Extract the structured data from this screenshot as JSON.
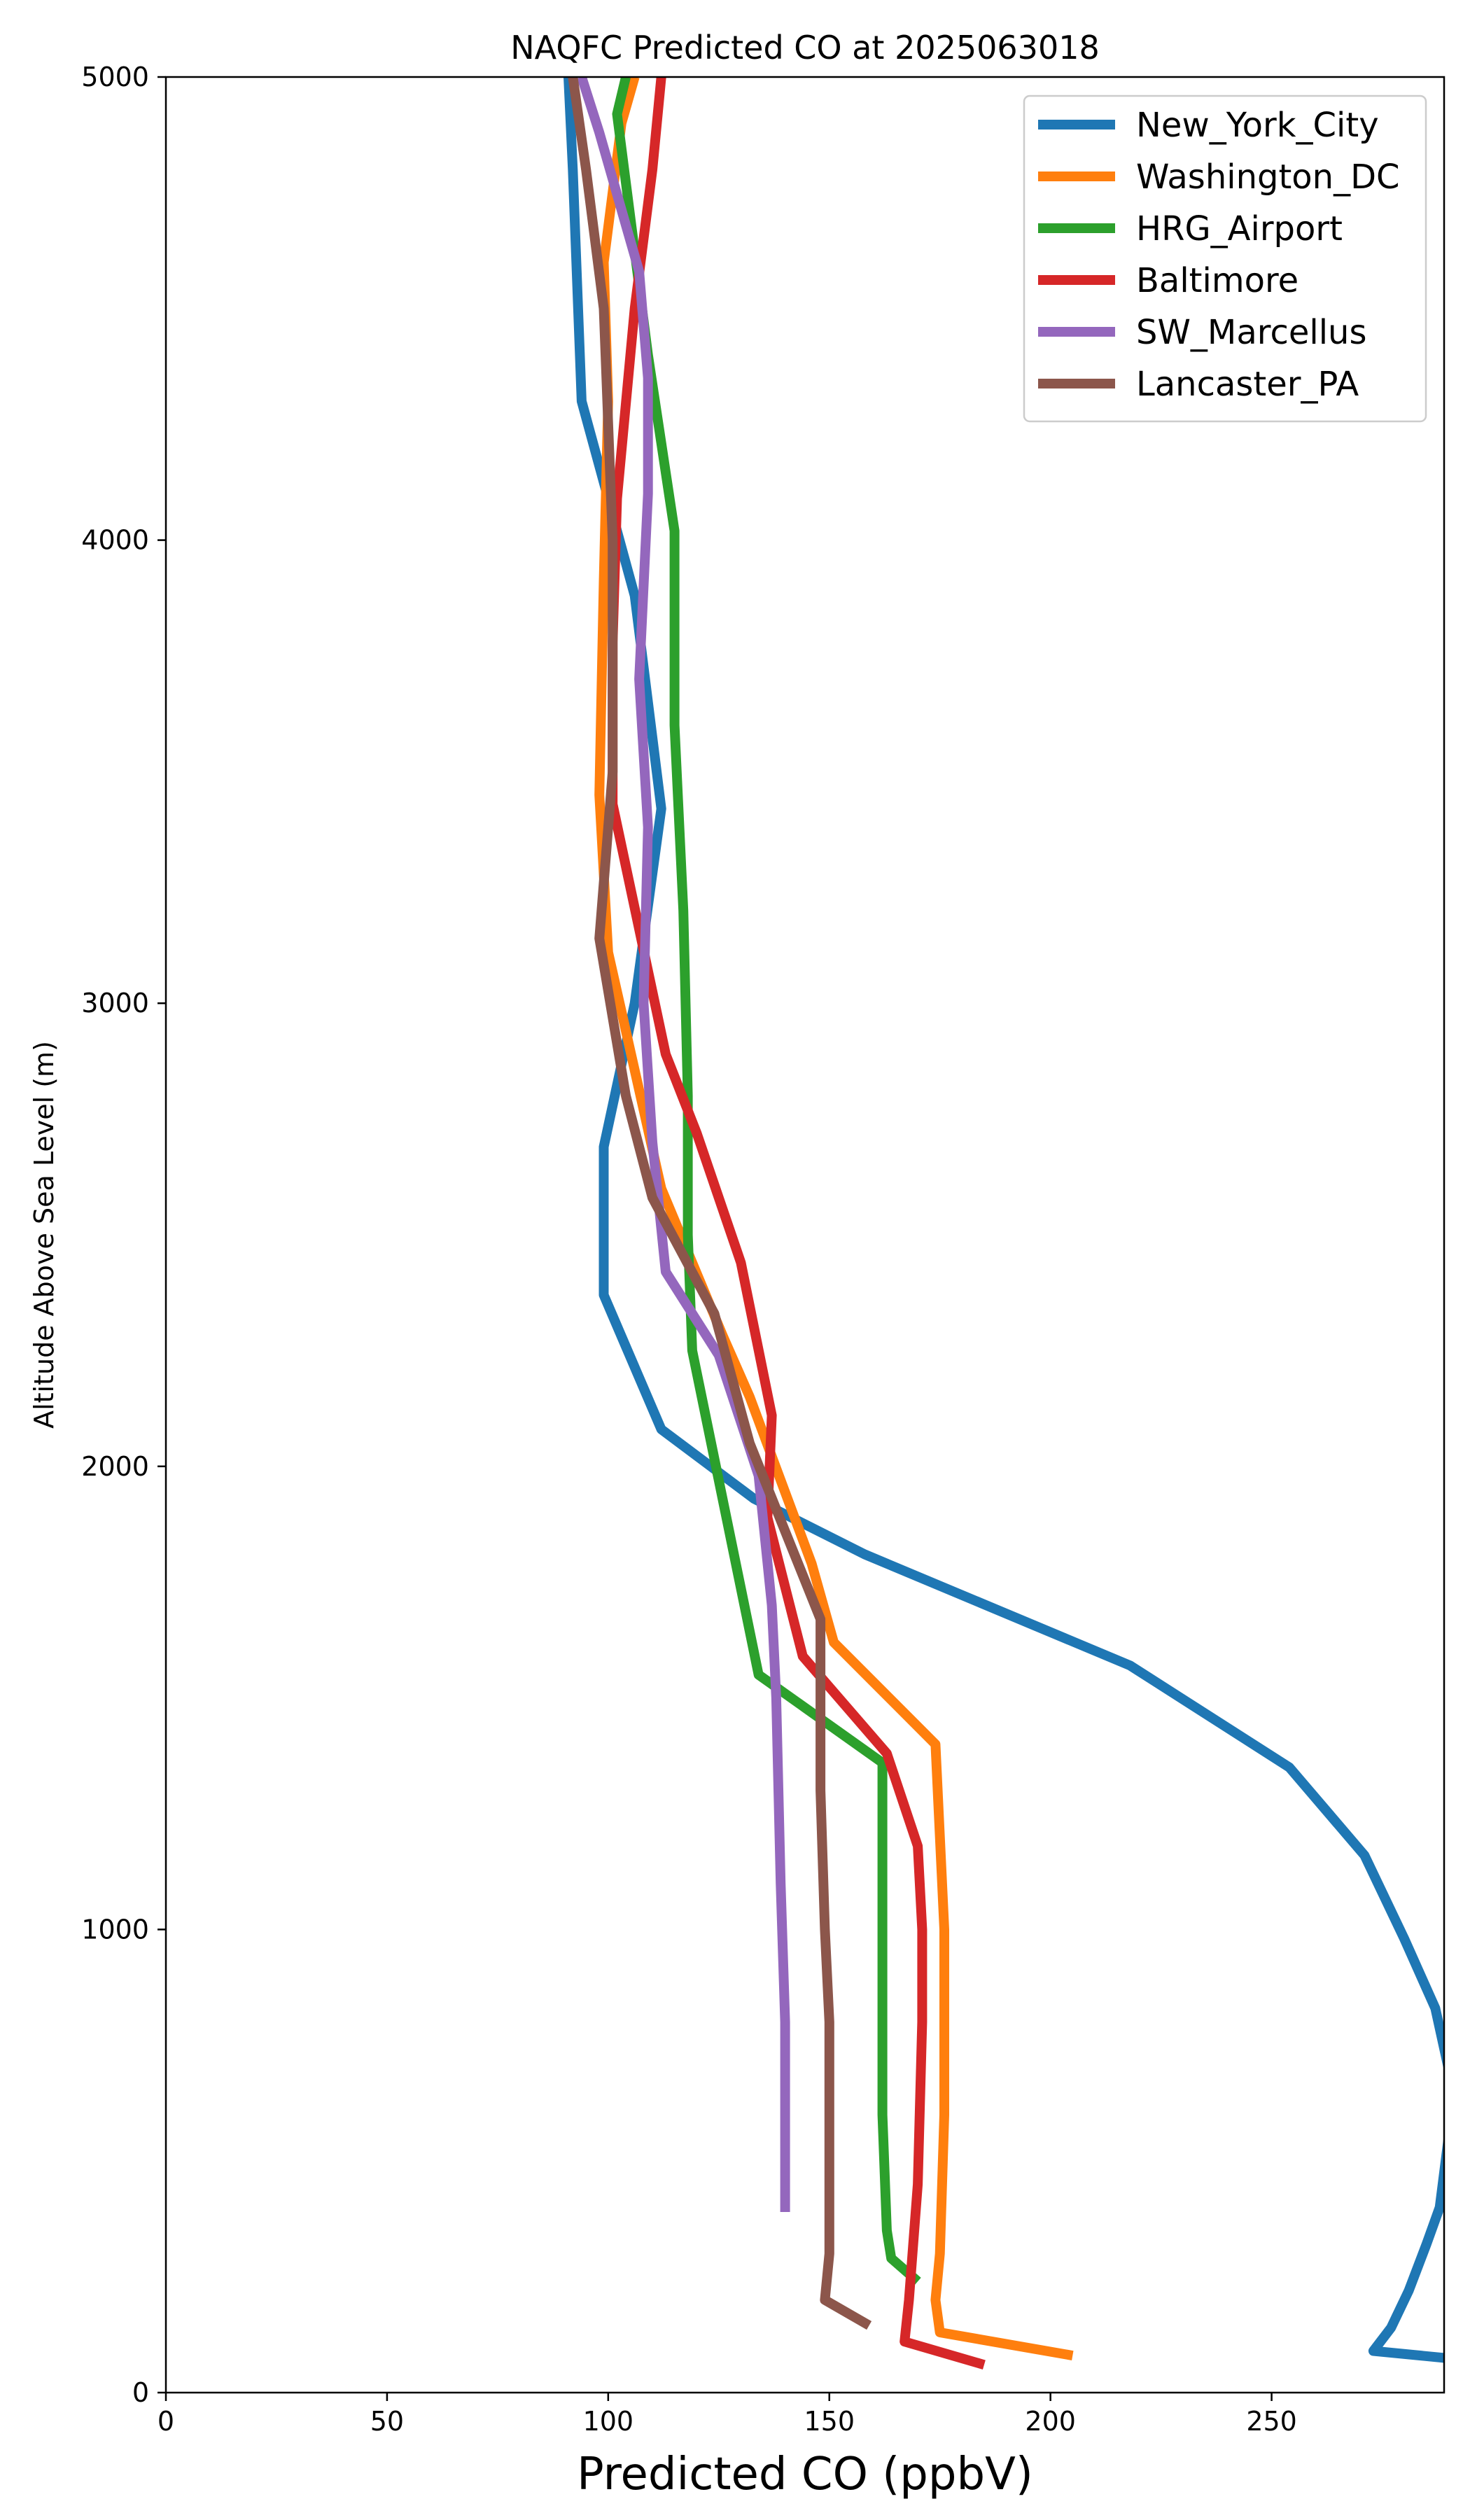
{
  "chart_data": {
    "type": "line",
    "title": "NAQFC Predicted CO at 2025063018",
    "xlabel": "Predicted CO (ppbV)",
    "ylabel": "Altitude Above Sea Level (m)",
    "xlim": [
      0,
      289
    ],
    "ylim": [
      0,
      5000
    ],
    "xticks": [
      0,
      50,
      100,
      150,
      200,
      250
    ],
    "yticks": [
      0,
      1000,
      2000,
      3000,
      4000,
      5000
    ],
    "grid": false,
    "legend_position": "top-right",
    "series": [
      {
        "name": "New_York_City",
        "color": "#1f77b4",
        "points": [
          [
            289,
            75
          ],
          [
            273,
            90
          ],
          [
            277,
            140
          ],
          [
            281,
            220
          ],
          [
            285,
            320
          ],
          [
            288,
            400
          ],
          [
            290,
            550
          ],
          [
            290,
            700
          ],
          [
            287,
            830
          ],
          [
            280,
            980
          ],
          [
            271,
            1160
          ],
          [
            254,
            1350
          ],
          [
            218,
            1570
          ],
          [
            158,
            1810
          ],
          [
            133,
            1930
          ],
          [
            112,
            2080
          ],
          [
            99,
            2370
          ],
          [
            99,
            2690
          ],
          [
            106,
            3000
          ],
          [
            112,
            3420
          ],
          [
            106,
            3880
          ],
          [
            94,
            4300
          ],
          [
            92,
            4800
          ],
          [
            91,
            5000
          ]
        ]
      },
      {
        "name": "Washington_DC",
        "color": "#ff7f0e",
        "points": [
          [
            205,
            80
          ],
          [
            175,
            130
          ],
          [
            174,
            200
          ],
          [
            175,
            300
          ],
          [
            176,
            600
          ],
          [
            176,
            1000
          ],
          [
            175,
            1200
          ],
          [
            174,
            1400
          ],
          [
            151,
            1620
          ],
          [
            146,
            1790
          ],
          [
            132,
            2150
          ],
          [
            126,
            2280
          ],
          [
            112,
            2600
          ],
          [
            100,
            3110
          ],
          [
            98,
            3450
          ],
          [
            99,
            3910
          ],
          [
            100,
            4300
          ],
          [
            99,
            4600
          ],
          [
            103,
            4900
          ],
          [
            106,
            5000
          ]
        ]
      },
      {
        "name": "HRG_Airport",
        "color": "#2ca02c",
        "points": [
          [
            170,
            240
          ],
          [
            164,
            290
          ],
          [
            163,
            350
          ],
          [
            162,
            600
          ],
          [
            162,
            1000
          ],
          [
            162,
            1360
          ],
          [
            134,
            1550
          ],
          [
            119,
            2250
          ],
          [
            118,
            2500
          ],
          [
            118,
            2800
          ],
          [
            117,
            3200
          ],
          [
            115,
            3600
          ],
          [
            115,
            4020
          ],
          [
            109,
            4400
          ],
          [
            102,
            4920
          ],
          [
            104,
            5000
          ]
        ]
      },
      {
        "name": "Baltimore",
        "color": "#d62728",
        "points": [
          [
            185,
            60
          ],
          [
            167,
            110
          ],
          [
            168,
            200
          ],
          [
            170,
            450
          ],
          [
            171,
            800
          ],
          [
            171,
            1000
          ],
          [
            170,
            1180
          ],
          [
            163,
            1380
          ],
          [
            144,
            1590
          ],
          [
            136,
            1890
          ],
          [
            137,
            2110
          ],
          [
            130,
            2440
          ],
          [
            120,
            2720
          ],
          [
            113,
            2890
          ],
          [
            101,
            3430
          ],
          [
            101,
            3780
          ],
          [
            102,
            4090
          ],
          [
            106,
            4500
          ],
          [
            110,
            4800
          ],
          [
            112,
            5000
          ]
        ]
      },
      {
        "name": "SW_Marcellus",
        "color": "#9467bd",
        "points": [
          [
            140,
            390
          ],
          [
            140,
            500
          ],
          [
            140,
            800
          ],
          [
            139,
            1100
          ],
          [
            138,
            1500
          ],
          [
            137,
            1700
          ],
          [
            134,
            1980
          ],
          [
            125,
            2240
          ],
          [
            113,
            2420
          ],
          [
            110,
            2700
          ],
          [
            108,
            3000
          ],
          [
            109,
            3380
          ],
          [
            107,
            3700
          ],
          [
            109,
            4100
          ],
          [
            109,
            4350
          ],
          [
            107,
            4580
          ],
          [
            98,
            4880
          ],
          [
            94,
            5000
          ]
        ]
      },
      {
        "name": "Lancaster_PA",
        "color": "#8c564b",
        "points": [
          [
            159,
            145
          ],
          [
            149,
            200
          ],
          [
            150,
            300
          ],
          [
            150,
            500
          ],
          [
            150,
            800
          ],
          [
            149,
            1000
          ],
          [
            148,
            1300
          ],
          [
            148,
            1670
          ],
          [
            132,
            2050
          ],
          [
            124,
            2330
          ],
          [
            110,
            2580
          ],
          [
            104,
            2800
          ],
          [
            98,
            3140
          ],
          [
            101,
            3500
          ],
          [
            101,
            4000
          ],
          [
            99,
            4500
          ],
          [
            95,
            4800
          ],
          [
            92,
            5000
          ]
        ]
      }
    ]
  }
}
